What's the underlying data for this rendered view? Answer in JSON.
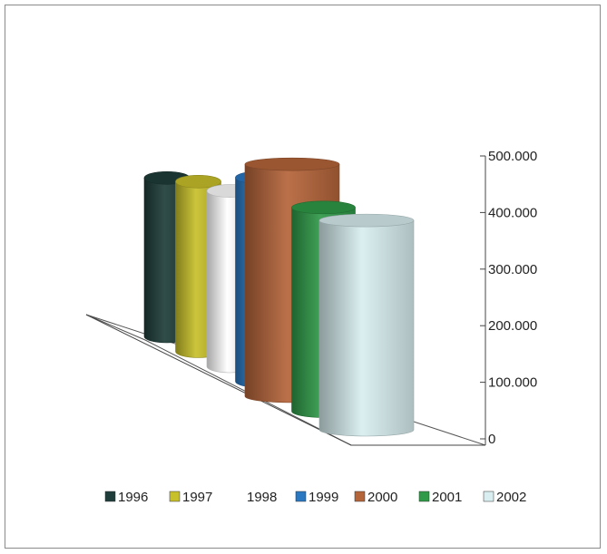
{
  "chart_data": {
    "type": "bar",
    "shape": "3d-cylinder",
    "categories": [
      "1996",
      "1997",
      "1998",
      "1999",
      "2000",
      "2001",
      "2002"
    ],
    "series": [
      {
        "name": "1996",
        "value": 280000,
        "color": "#1f3d3a"
      },
      {
        "name": "1997",
        "value": 300000,
        "color": "#c8c02a"
      },
      {
        "name": "1998",
        "value": 310000,
        "color": "#ffffff"
      },
      {
        "name": "1999",
        "value": 360000,
        "color": "#2a78c2"
      },
      {
        "name": "2000",
        "value": 410000,
        "color": "#b5653a"
      },
      {
        "name": "2001",
        "value": 360000,
        "color": "#2f9a48"
      },
      {
        "name": "2002",
        "value": 370000,
        "color": "#d8eef0"
      }
    ],
    "y_axis": {
      "min": 0,
      "max": 500000,
      "ticks": [
        "0",
        "100.000",
        "200.000",
        "300.000",
        "400.000",
        "500.000"
      ],
      "position": "right"
    },
    "legend": {
      "position": "bottom"
    },
    "grid": false
  }
}
